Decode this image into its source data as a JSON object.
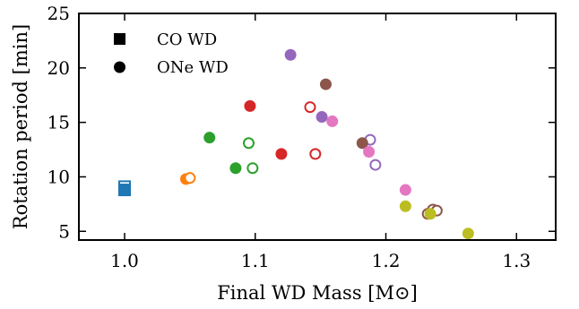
{
  "chart_data": {
    "type": "scatter",
    "xlabel": "Final WD Mass [M⊙]",
    "ylabel": "Rotation period [min]",
    "xlim": [
      0.965,
      1.33
    ],
    "ylim": [
      4.2,
      25
    ],
    "xticks": [
      {
        "value": 1.0,
        "label": "1.0"
      },
      {
        "value": 1.1,
        "label": "1.1"
      },
      {
        "value": 1.2,
        "label": "1.2"
      },
      {
        "value": 1.3,
        "label": "1.3"
      }
    ],
    "yticks": [
      {
        "value": 5,
        "label": "5"
      },
      {
        "value": 10,
        "label": "10"
      },
      {
        "value": 15,
        "label": "15"
      },
      {
        "value": 20,
        "label": "20"
      },
      {
        "value": 25,
        "label": "25"
      }
    ],
    "legend": {
      "placement": "top-left",
      "entries": [
        {
          "label": "CO WD",
          "marker": "square"
        },
        {
          "label": "ONe WD",
          "marker": "circle"
        }
      ]
    },
    "grid": false,
    "points": [
      {
        "x": 1.0,
        "y": 9.1,
        "color": "#1f77b4",
        "marker": "square",
        "filled": false
      },
      {
        "x": 1.0,
        "y": 8.8,
        "color": "#1f77b4",
        "marker": "square",
        "filled": true
      },
      {
        "x": 1.047,
        "y": 9.8,
        "color": "#ff7f0e",
        "marker": "circle",
        "filled": true
      },
      {
        "x": 1.05,
        "y": 9.9,
        "color": "#ff7f0e",
        "marker": "circle",
        "filled": false
      },
      {
        "x": 1.065,
        "y": 13.6,
        "color": "#2ca02c",
        "marker": "circle",
        "filled": true
      },
      {
        "x": 1.085,
        "y": 10.8,
        "color": "#2ca02c",
        "marker": "circle",
        "filled": true
      },
      {
        "x": 1.095,
        "y": 13.1,
        "color": "#2ca02c",
        "marker": "circle",
        "filled": false
      },
      {
        "x": 1.098,
        "y": 10.8,
        "color": "#2ca02c",
        "marker": "circle",
        "filled": false
      },
      {
        "x": 1.096,
        "y": 16.5,
        "color": "#d62728",
        "marker": "circle",
        "filled": true
      },
      {
        "x": 1.12,
        "y": 12.1,
        "color": "#d62728",
        "marker": "circle",
        "filled": true
      },
      {
        "x": 1.142,
        "y": 16.4,
        "color": "#d62728",
        "marker": "circle",
        "filled": false
      },
      {
        "x": 1.146,
        "y": 12.1,
        "color": "#d62728",
        "marker": "circle",
        "filled": false
      },
      {
        "x": 1.127,
        "y": 21.2,
        "color": "#9467bd",
        "marker": "circle",
        "filled": true
      },
      {
        "x": 1.151,
        "y": 15.5,
        "color": "#9467bd",
        "marker": "circle",
        "filled": true
      },
      {
        "x": 1.188,
        "y": 13.4,
        "color": "#9467bd",
        "marker": "circle",
        "filled": false
      },
      {
        "x": 1.192,
        "y": 11.1,
        "color": "#9467bd",
        "marker": "circle",
        "filled": false
      },
      {
        "x": 1.154,
        "y": 18.5,
        "color": "#8c564b",
        "marker": "circle",
        "filled": true
      },
      {
        "x": 1.182,
        "y": 13.1,
        "color": "#8c564b",
        "marker": "circle",
        "filled": true
      },
      {
        "x": 1.236,
        "y": 7.0,
        "color": "#8c564b",
        "marker": "circle",
        "filled": false
      },
      {
        "x": 1.239,
        "y": 6.9,
        "color": "#8c564b",
        "marker": "circle",
        "filled": false
      },
      {
        "x": 1.232,
        "y": 6.6,
        "color": "#8c564b",
        "marker": "circle",
        "filled": false
      },
      {
        "x": 1.159,
        "y": 15.1,
        "color": "#e377c2",
        "marker": "circle",
        "filled": true
      },
      {
        "x": 1.187,
        "y": 12.3,
        "color": "#e377c2",
        "marker": "circle",
        "filled": true
      },
      {
        "x": 1.215,
        "y": 8.8,
        "color": "#e377c2",
        "marker": "circle",
        "filled": true
      },
      {
        "x": 1.215,
        "y": 7.3,
        "color": "#bcbd22",
        "marker": "circle",
        "filled": true
      },
      {
        "x": 1.234,
        "y": 6.6,
        "color": "#bcbd22",
        "marker": "circle",
        "filled": true
      },
      {
        "x": 1.263,
        "y": 4.8,
        "color": "#bcbd22",
        "marker": "circle",
        "filled": true
      }
    ]
  }
}
